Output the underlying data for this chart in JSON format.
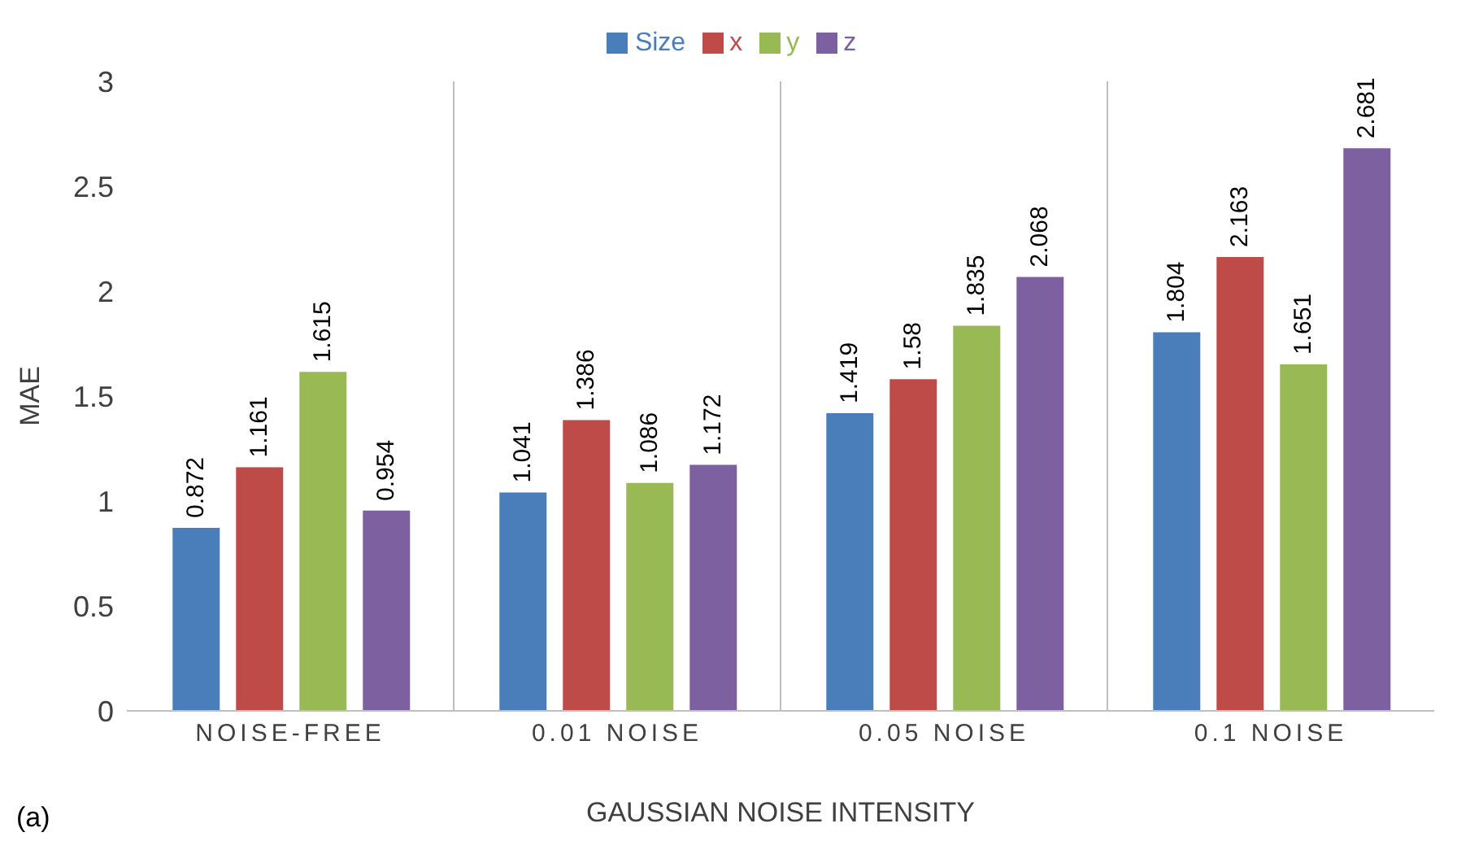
{
  "chart_data": {
    "type": "bar",
    "xlabel": "GAUSSIAN NOISE INTENSITY",
    "ylabel": "MAE",
    "categories": [
      "NOISE-FREE",
      "0.01 NOISE",
      "0.05 NOISE",
      "0.1 NOISE"
    ],
    "series": [
      {
        "name": "Size",
        "color": "#4a7ebb",
        "values": [
          0.872,
          1.041,
          1.419,
          1.804
        ]
      },
      {
        "name": "x",
        "color": "#be4b48",
        "values": [
          1.161,
          1.386,
          1.58,
          2.163
        ]
      },
      {
        "name": "y",
        "color": "#98b954",
        "values": [
          1.615,
          1.086,
          1.835,
          1.651
        ]
      },
      {
        "name": "z",
        "color": "#7d60a0",
        "values": [
          0.954,
          1.172,
          2.068,
          2.681
        ]
      }
    ],
    "ylim": [
      0,
      3
    ],
    "yticks": [
      0,
      0.5,
      1,
      1.5,
      2,
      2.5,
      3
    ],
    "grid": "x",
    "legend": "top",
    "data_labels": true,
    "annotations": [
      "(a)"
    ]
  }
}
